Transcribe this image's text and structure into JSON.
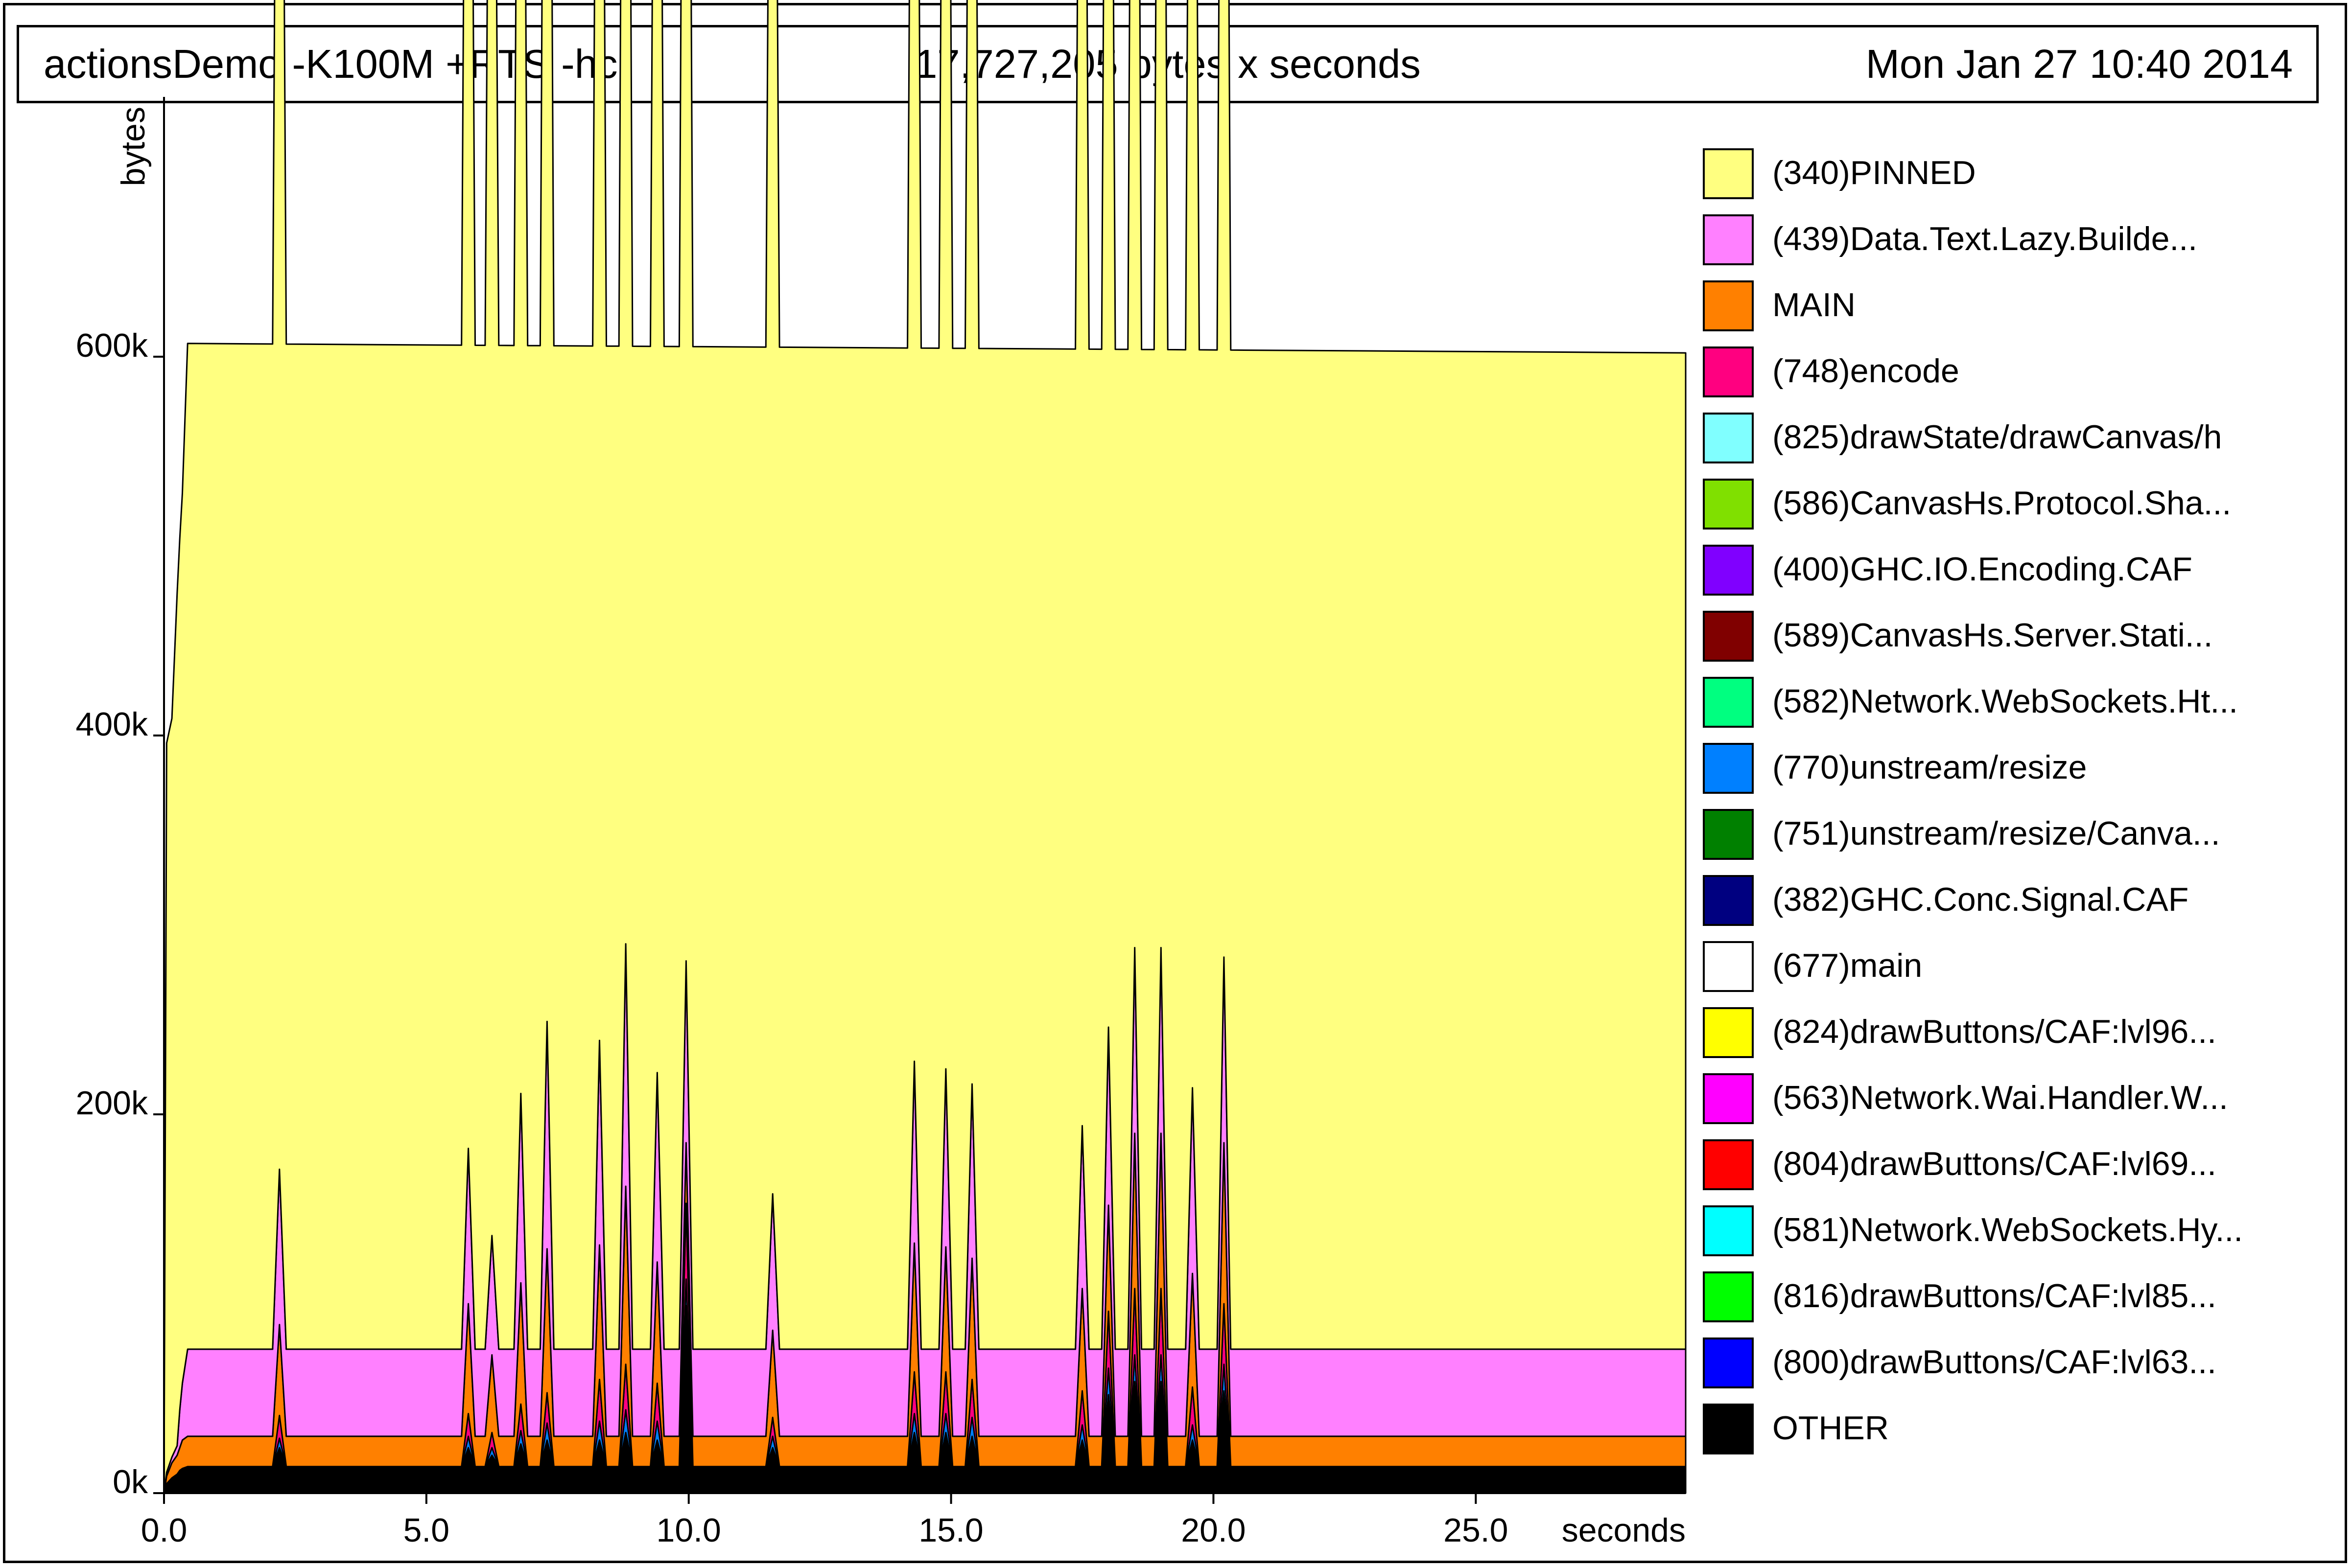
{
  "header": {
    "program": "actionsDemo -K100M +RTS -hc",
    "total": "17,727,205 bytes x seconds",
    "date": "Mon Jan 27 10:40 2014"
  },
  "chart_data": {
    "type": "area",
    "stacked": true,
    "xlabel": "seconds",
    "ylabel": "bytes",
    "xlim": [
      0,
      29
    ],
    "ylim": [
      0,
      732000
    ],
    "xticks": [
      0,
      5,
      10,
      15,
      20,
      25
    ],
    "xtick_labels": [
      "0.0",
      "5.0",
      "10.0",
      "15.0",
      "20.0",
      "25.0"
    ],
    "yticks": [
      0,
      200000,
      400000,
      600000
    ],
    "ytick_labels": [
      "0k",
      "200k",
      "400k",
      "600k"
    ],
    "legend_position": "right",
    "base_x": [
      0,
      0.05,
      0.15,
      0.25,
      0.3,
      0.35,
      0.45,
      29
    ],
    "spike_x": [
      2.2,
      5.8,
      6.25,
      6.8,
      7.3,
      8.3,
      8.8,
      9.4,
      9.95,
      11.6,
      14.3,
      14.9,
      15.4,
      17.5,
      18.0,
      18.5,
      19.0,
      19.6,
      20.2
    ],
    "series": [
      {
        "name": "OTHER",
        "color": "#000000",
        "base": [
          0,
          5000,
          8000,
          10000,
          12000,
          13000,
          14000,
          14000
        ],
        "spikes": [
          10000,
          10000,
          6000,
          12000,
          14000,
          14000,
          18000,
          14000,
          85000,
          10000,
          18000,
          18000,
          16000,
          14000,
          38000,
          45000,
          45000,
          14000,
          40000
        ]
      },
      {
        "name": "(800)drawButtons/CAF:lvl63...",
        "color": "#0000ff",
        "base": [
          0,
          0,
          0,
          0,
          0,
          0,
          0,
          0
        ],
        "spikes": [
          0,
          0,
          0,
          0,
          0,
          0,
          0,
          0,
          0,
          0,
          0,
          0,
          0,
          0,
          0,
          0,
          0,
          0,
          0
        ]
      },
      {
        "name": "(816)drawButtons/CAF:lvl85...",
        "color": "#00ff00",
        "base": [
          0,
          0,
          0,
          0,
          0,
          0,
          0,
          0
        ],
        "spikes": [
          0,
          0,
          0,
          0,
          0,
          0,
          0,
          0,
          0,
          0,
          0,
          0,
          0,
          0,
          0,
          0,
          0,
          0,
          0
        ]
      },
      {
        "name": "(581)Network.WebSockets.Hy...",
        "color": "#00ffff",
        "base": [
          0,
          0,
          0,
          0,
          0,
          0,
          0,
          0
        ],
        "spikes": [
          0,
          0,
          0,
          0,
          0,
          0,
          0,
          0,
          0,
          0,
          0,
          0,
          0,
          0,
          0,
          0,
          0,
          0,
          0
        ]
      },
      {
        "name": "(804)drawButtons/CAF:lvl69...",
        "color": "#ff0000",
        "base": [
          0,
          0,
          0,
          0,
          0,
          0,
          0,
          0
        ],
        "spikes": [
          0,
          0,
          0,
          0,
          0,
          0,
          0,
          0,
          0,
          0,
          0,
          0,
          0,
          0,
          0,
          0,
          0,
          0,
          0
        ]
      },
      {
        "name": "(563)Network.Wai.Handler.W...",
        "color": "#ff00ff",
        "base": [
          0,
          0,
          0,
          0,
          0,
          0,
          0,
          0
        ],
        "spikes": [
          0,
          0,
          0,
          0,
          0,
          0,
          0,
          0,
          0,
          0,
          0,
          0,
          0,
          0,
          0,
          0,
          0,
          0,
          0
        ]
      },
      {
        "name": "(824)drawButtons/CAF:lvl96...",
        "color": "#ffff00",
        "base": [
          0,
          0,
          0,
          0,
          0,
          0,
          0,
          0
        ],
        "spikes": [
          0,
          0,
          0,
          0,
          0,
          0,
          0,
          0,
          0,
          0,
          0,
          0,
          0,
          0,
          0,
          0,
          0,
          0,
          0
        ]
      },
      {
        "name": "(677)main",
        "color": "#ffffff",
        "base": [
          0,
          0,
          0,
          0,
          0,
          0,
          0,
          0
        ],
        "spikes": [
          0,
          0,
          0,
          0,
          0,
          0,
          0,
          0,
          0,
          0,
          0,
          0,
          0,
          0,
          0,
          0,
          0,
          0,
          0
        ]
      },
      {
        "name": "(382)GHC.Conc.Signal.CAF",
        "color": "#000080",
        "base": [
          0,
          0,
          0,
          0,
          0,
          0,
          0,
          0
        ],
        "spikes": [
          0,
          0,
          0,
          0,
          0,
          0,
          0,
          0,
          0,
          0,
          0,
          0,
          0,
          0,
          0,
          0,
          0,
          0,
          0
        ]
      },
      {
        "name": "(751)unstream/resize/Canva...",
        "color": "#008000",
        "base": [
          0,
          0,
          0,
          0,
          0,
          0,
          0,
          0
        ],
        "spikes": [
          0,
          0,
          0,
          0,
          0,
          0,
          0,
          0,
          0,
          0,
          0,
          0,
          0,
          0,
          0,
          0,
          0,
          0,
          0
        ]
      },
      {
        "name": "(770)unstream/resize",
        "color": "#0080ff",
        "base": [
          0,
          0,
          0,
          0,
          0,
          0,
          0,
          0
        ],
        "spikes": [
          5000,
          6000,
          4000,
          7000,
          9000,
          10000,
          12000,
          10000,
          14000,
          6000,
          10000,
          10000,
          10000,
          8000,
          14000,
          14000,
          14000,
          8000,
          14000
        ]
      },
      {
        "name": "(582)Network.WebSockets.Ht...",
        "color": "#00ff80",
        "base": [
          0,
          0,
          0,
          0,
          0,
          0,
          0,
          0
        ],
        "spikes": [
          0,
          0,
          0,
          0,
          0,
          0,
          0,
          0,
          0,
          0,
          0,
          0,
          0,
          0,
          0,
          0,
          0,
          0,
          0
        ]
      },
      {
        "name": "(589)CanvasHs.Server.Stati...",
        "color": "#800000",
        "base": [
          0,
          0,
          0,
          0,
          0,
          0,
          0,
          0
        ],
        "spikes": [
          0,
          0,
          0,
          0,
          0,
          0,
          0,
          0,
          0,
          0,
          0,
          0,
          0,
          0,
          0,
          0,
          0,
          0,
          0
        ]
      },
      {
        "name": "(400)GHC.IO.Encoding.CAF",
        "color": "#8000ff",
        "base": [
          0,
          0,
          0,
          0,
          0,
          0,
          0,
          0
        ],
        "spikes": [
          0,
          0,
          0,
          0,
          0,
          0,
          0,
          0,
          0,
          0,
          0,
          0,
          0,
          0,
          0,
          0,
          0,
          0,
          0
        ]
      },
      {
        "name": "(586)CanvasHs.Protocol.Sha...",
        "color": "#80e000",
        "base": [
          0,
          0,
          0,
          0,
          0,
          0,
          0,
          0
        ],
        "spikes": [
          0,
          0,
          0,
          0,
          0,
          0,
          0,
          0,
          0,
          0,
          0,
          0,
          0,
          0,
          0,
          0,
          0,
          0,
          0
        ]
      },
      {
        "name": "(825)drawState/drawCanvas/h",
        "color": "#80ffff",
        "base": [
          0,
          0,
          0,
          0,
          0,
          0,
          0,
          0
        ],
        "spikes": [
          0,
          0,
          0,
          0,
          0,
          0,
          0,
          0,
          0,
          0,
          0,
          0,
          0,
          0,
          0,
          0,
          0,
          0,
          0
        ]
      },
      {
        "name": "(748)encode",
        "color": "#ff0080",
        "base": [
          0,
          0,
          0,
          0,
          0,
          0,
          0,
          0
        ],
        "spikes": [
          12000,
          12000,
          8000,
          14000,
          16000,
          22000,
          24000,
          20000,
          40000,
          10000,
          22000,
          22000,
          20000,
          18000,
          30000,
          35000,
          35000,
          20000,
          32000
        ]
      },
      {
        "name": "MAIN",
        "color": "#ff8000",
        "base": [
          0,
          4000,
          8000,
          10000,
          12000,
          15000,
          16000,
          16000
        ],
        "spikes": [
          32000,
          42000,
          25000,
          48000,
          60000,
          55000,
          78000,
          48000,
          16000,
          30000,
          52000,
          50000,
          48000,
          38000,
          40000,
          66000,
          66000,
          44000,
          69000
        ]
      },
      {
        "name": "(439)Data.Text.Lazy.Builde...",
        "color": "#ff80ff",
        "base": [
          0,
          2000,
          3000,
          5000,
          20000,
          30000,
          46000,
          46000
        ],
        "spikes": [
          36000,
          36000,
          17000,
          54000,
          74000,
          62000,
          82000,
          54000,
          50000,
          26000,
          50000,
          48000,
          46000,
          40000,
          48000,
          52000,
          52000,
          52000,
          52000
        ]
      },
      {
        "name": "(340)PINNED",
        "color": "#ffff80",
        "base": [
          0,
          385000,
          390000,
          450000,
          460000,
          470000,
          531000,
          526000
        ],
        "spikes": [
          536000,
          535000,
          533000,
          535000,
          536000,
          537000,
          536000,
          536000,
          532000,
          532000,
          538000,
          534000,
          530000,
          530000,
          536000,
          534000,
          534000,
          530000,
          515000
        ]
      }
    ]
  }
}
